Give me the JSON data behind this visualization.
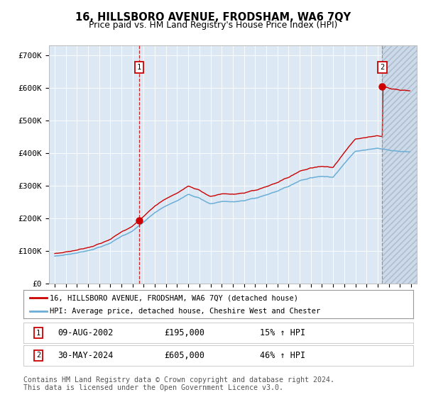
{
  "title": "16, HILLSBORO AVENUE, FRODSHAM, WA6 7QY",
  "subtitle": "Price paid vs. HM Land Registry's House Price Index (HPI)",
  "legend_line1": "16, HILLSBORO AVENUE, FRODSHAM, WA6 7QY (detached house)",
  "legend_line2": "HPI: Average price, detached house, Cheshire West and Chester",
  "ann1_label": "1",
  "ann1_date": "09-AUG-2002",
  "ann1_price": "£195,000",
  "ann1_pct": "15% ↑ HPI",
  "ann1_x": 2002.61,
  "ann1_y": 195000,
  "ann2_label": "2",
  "ann2_date": "30-MAY-2024",
  "ann2_price": "£605,000",
  "ann2_pct": "46% ↑ HPI",
  "ann2_x": 2024.42,
  "ann2_y": 605000,
  "hpi_color": "#6baed6",
  "price_color": "#cc0000",
  "bg_color": "#dce9f5",
  "hatch_bg": "#ccd9e8",
  "ylim": [
    0,
    730000
  ],
  "xlim_start": 1994.5,
  "xlim_end": 2027.5,
  "future_x": 2024.42,
  "ytick_vals": [
    0,
    100000,
    200000,
    300000,
    400000,
    500000,
    600000,
    700000
  ],
  "ytick_labels": [
    "£0",
    "£100K",
    "£200K",
    "£300K",
    "£400K",
    "£500K",
    "£600K",
    "£700K"
  ],
  "copyright": "Contains HM Land Registry data © Crown copyright and database right 2024.\nThis data is licensed under the Open Government Licence v3.0."
}
